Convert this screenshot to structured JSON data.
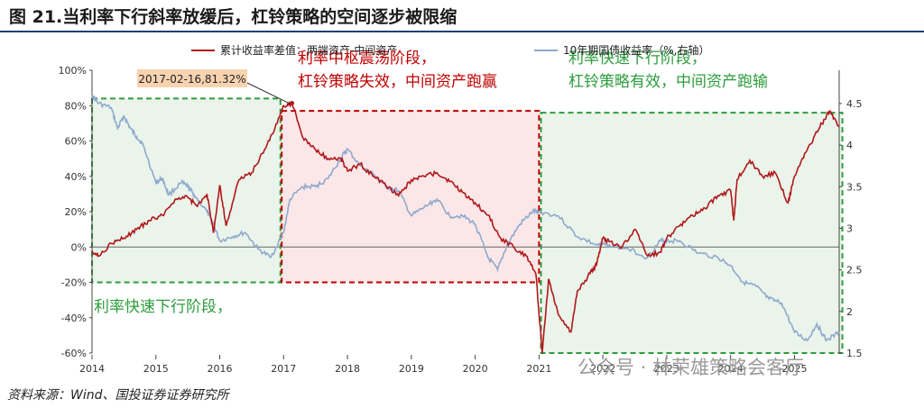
{
  "title": "图 21.当利率下行斜率放缓后，杠铃策略的空间逐步被限缩",
  "source": "资料来源：Wind、国投证券证券研究所",
  "watermark": "公众号 · 林荣雄策略会客厅",
  "colors": {
    "series1": "#b0171b",
    "series2": "#8fa9cf",
    "red_zone": "#fbe7e7",
    "green_zone": "#eaf4ea",
    "red_border": "#c00000",
    "green_border": "#2c9c3c",
    "callout_bg": "#f8d3b0"
  },
  "chart_data": {
    "type": "line",
    "x_ticks": [
      "2014",
      "2015",
      "2016",
      "2017",
      "2018",
      "2019",
      "2020",
      "2021",
      "2022",
      "2023",
      "2024",
      "2025"
    ],
    "xlim": [
      2014.0,
      2025.7
    ],
    "y_left": {
      "ticks": [
        "100%",
        "80%",
        "60%",
        "40%",
        "20%",
        "0%",
        "-20%",
        "-40%",
        "-60%"
      ],
      "range": [
        -60,
        100
      ]
    },
    "y_right": {
      "ticks": [
        "4.5",
        "4",
        "3.5",
        "3",
        "2.5",
        "2",
        "1.5"
      ],
      "range": [
        1.5,
        4.9
      ]
    },
    "grid": false,
    "legend_position": "top",
    "series": [
      {
        "name": "累计收益率差值：两端资产-中间资产",
        "axis": "left",
        "points": [
          [
            2014.0,
            -2
          ],
          [
            2014.1,
            -5
          ],
          [
            2014.3,
            2
          ],
          [
            2014.5,
            5
          ],
          [
            2014.7,
            10
          ],
          [
            2014.9,
            15
          ],
          [
            2015.1,
            18
          ],
          [
            2015.3,
            27
          ],
          [
            2015.5,
            28
          ],
          [
            2015.65,
            23
          ],
          [
            2015.8,
            30
          ],
          [
            2015.9,
            8
          ],
          [
            2016.0,
            35
          ],
          [
            2016.1,
            12
          ],
          [
            2016.3,
            38
          ],
          [
            2016.5,
            42
          ],
          [
            2016.7,
            55
          ],
          [
            2016.9,
            70
          ],
          [
            2017.0,
            80
          ],
          [
            2017.13,
            81.3
          ],
          [
            2017.3,
            62
          ],
          [
            2017.5,
            55
          ],
          [
            2017.7,
            50
          ],
          [
            2017.9,
            50
          ],
          [
            2018.0,
            43
          ],
          [
            2018.2,
            47
          ],
          [
            2018.4,
            40
          ],
          [
            2018.6,
            35
          ],
          [
            2018.8,
            29
          ],
          [
            2019.0,
            38
          ],
          [
            2019.2,
            40
          ],
          [
            2019.4,
            42
          ],
          [
            2019.6,
            37
          ],
          [
            2019.8,
            31
          ],
          [
            2020.0,
            25
          ],
          [
            2020.2,
            18
          ],
          [
            2020.4,
            5
          ],
          [
            2020.6,
            0
          ],
          [
            2020.8,
            -5
          ],
          [
            2020.95,
            -15
          ],
          [
            2021.05,
            -60
          ],
          [
            2021.15,
            -18
          ],
          [
            2021.3,
            -38
          ],
          [
            2021.5,
            -48
          ],
          [
            2021.6,
            -25
          ],
          [
            2021.8,
            -15
          ],
          [
            2021.9,
            -10
          ],
          [
            2022.0,
            5
          ],
          [
            2022.1,
            3
          ],
          [
            2022.3,
            0
          ],
          [
            2022.5,
            10
          ],
          [
            2022.7,
            -5
          ],
          [
            2022.9,
            -3
          ],
          [
            2023.0,
            5
          ],
          [
            2023.2,
            12
          ],
          [
            2023.4,
            18
          ],
          [
            2023.6,
            22
          ],
          [
            2023.8,
            29
          ],
          [
            2024.0,
            32
          ],
          [
            2024.05,
            15
          ],
          [
            2024.1,
            38
          ],
          [
            2024.3,
            49
          ],
          [
            2024.5,
            40
          ],
          [
            2024.7,
            42
          ],
          [
            2024.9,
            25
          ],
          [
            2025.0,
            40
          ],
          [
            2025.2,
            55
          ],
          [
            2025.4,
            68
          ],
          [
            2025.55,
            77
          ],
          [
            2025.7,
            68
          ]
        ]
      },
      {
        "name": "10年期国债收益率（%,右轴）",
        "axis": "right",
        "points": [
          [
            2014.0,
            4.6
          ],
          [
            2014.1,
            4.5
          ],
          [
            2014.3,
            4.45
          ],
          [
            2014.4,
            4.2
          ],
          [
            2014.5,
            4.35
          ],
          [
            2014.6,
            4.2
          ],
          [
            2014.7,
            4.1
          ],
          [
            2014.8,
            4.0
          ],
          [
            2015.0,
            3.55
          ],
          [
            2015.1,
            3.6
          ],
          [
            2015.2,
            3.4
          ],
          [
            2015.4,
            3.55
          ],
          [
            2015.5,
            3.5
          ],
          [
            2015.6,
            3.4
          ],
          [
            2015.8,
            3.2
          ],
          [
            2015.9,
            3.05
          ],
          [
            2016.0,
            2.85
          ],
          [
            2016.2,
            2.9
          ],
          [
            2016.4,
            2.95
          ],
          [
            2016.6,
            2.75
          ],
          [
            2016.8,
            2.65
          ],
          [
            2017.0,
            2.95
          ],
          [
            2017.1,
            3.35
          ],
          [
            2017.3,
            3.5
          ],
          [
            2017.5,
            3.5
          ],
          [
            2017.7,
            3.6
          ],
          [
            2017.9,
            3.85
          ],
          [
            2018.0,
            3.95
          ],
          [
            2018.2,
            3.75
          ],
          [
            2018.4,
            3.65
          ],
          [
            2018.6,
            3.5
          ],
          [
            2018.8,
            3.45
          ],
          [
            2019.0,
            3.15
          ],
          [
            2019.2,
            3.25
          ],
          [
            2019.4,
            3.35
          ],
          [
            2019.6,
            3.15
          ],
          [
            2019.8,
            3.15
          ],
          [
            2020.0,
            3.05
          ],
          [
            2020.2,
            2.65
          ],
          [
            2020.35,
            2.5
          ],
          [
            2020.5,
            2.8
          ],
          [
            2020.7,
            3.05
          ],
          [
            2020.9,
            3.2
          ],
          [
            2021.0,
            3.2
          ],
          [
            2021.3,
            3.15
          ],
          [
            2021.6,
            2.9
          ],
          [
            2021.9,
            2.8
          ],
          [
            2022.1,
            2.8
          ],
          [
            2022.4,
            2.75
          ],
          [
            2022.7,
            2.65
          ],
          [
            2022.9,
            2.85
          ],
          [
            2023.0,
            2.85
          ],
          [
            2023.2,
            2.85
          ],
          [
            2023.5,
            2.7
          ],
          [
            2023.8,
            2.65
          ],
          [
            2024.0,
            2.55
          ],
          [
            2024.2,
            2.35
          ],
          [
            2024.4,
            2.3
          ],
          [
            2024.6,
            2.15
          ],
          [
            2024.8,
            2.1
          ],
          [
            2025.0,
            1.75
          ],
          [
            2025.2,
            1.65
          ],
          [
            2025.35,
            1.85
          ],
          [
            2025.5,
            1.65
          ],
          [
            2025.7,
            1.75
          ]
        ]
      }
    ],
    "callout": {
      "text": "2017-02-16,81.32%",
      "x": 2017.13,
      "y": 81.32
    },
    "zones": [
      {
        "label_lines": [
          "利率快速下行阶段，"
        ],
        "color": "green",
        "x_range": [
          2014.0,
          2016.95
        ],
        "y_range": [
          -20,
          84
        ]
      },
      {
        "label_lines": [
          "利率中枢震荡阶段，",
          "杠铃策略失效，中间资产跑赢"
        ],
        "color": "red",
        "x_range": [
          2016.97,
          2021.0
        ],
        "y_range": [
          -20,
          77
        ]
      },
      {
        "label_lines": [
          "利率快速下行阶段，",
          "杠铃策略有效，中间资产跑输"
        ],
        "color": "green",
        "x_range": [
          2021.03,
          2025.75
        ],
        "y_range": [
          -60,
          76
        ]
      }
    ]
  }
}
